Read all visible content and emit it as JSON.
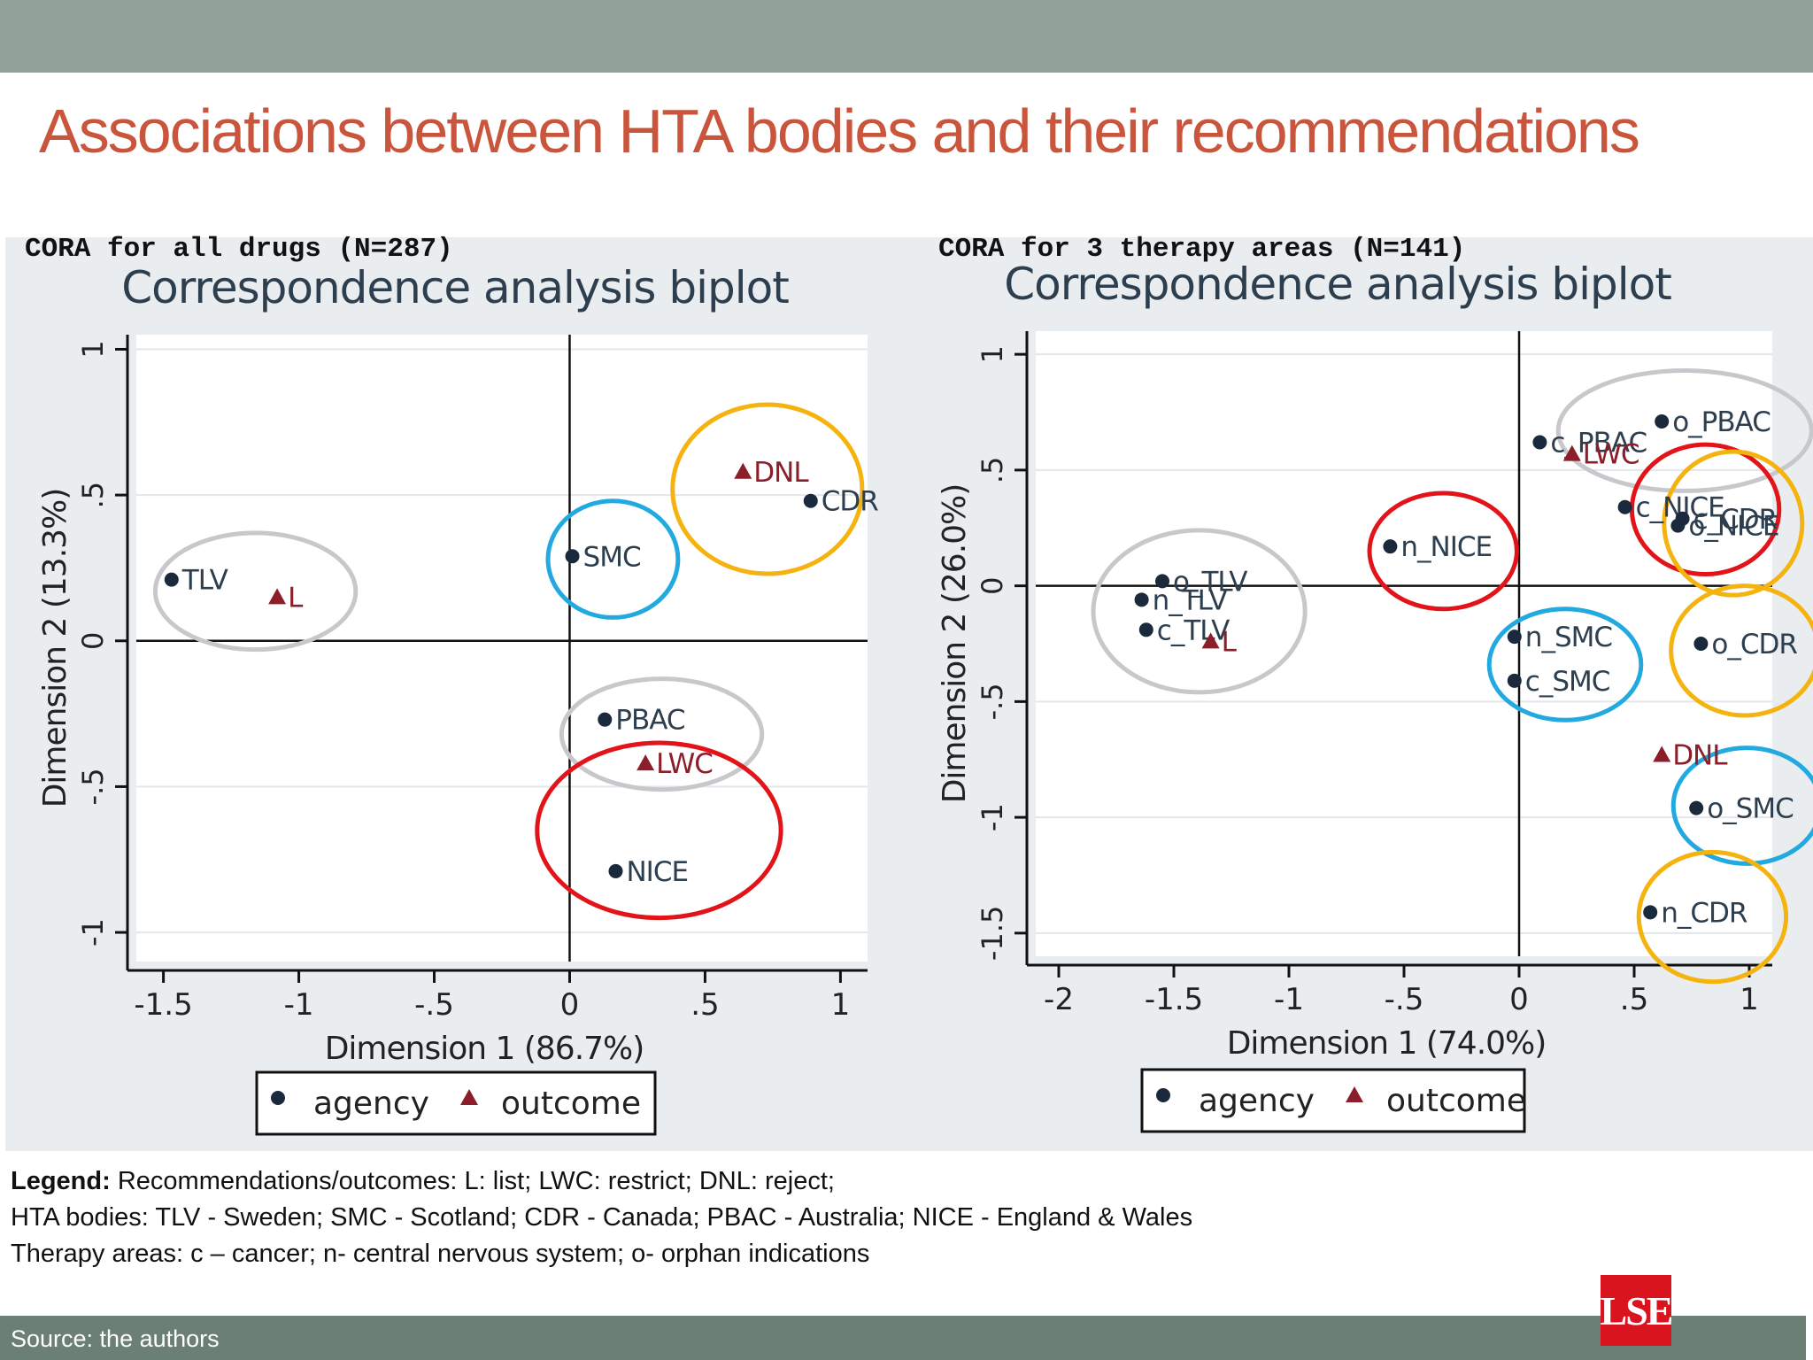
{
  "colors": {
    "top_bar": "#8fa198",
    "title": "#c9553c",
    "figure_bg": "#e9edf0",
    "plot_bg": "#ffffff",
    "footer_bar": "#6b7f74",
    "logo_bg": "#d9141f",
    "agency_marker": "#1a2a3c",
    "outcome_marker": "#8c1e2a",
    "circle_gray": "#c8c8cc",
    "circle_blue": "#22a9e0",
    "circle_orange": "#f5b30f",
    "circle_red": "#e2141a"
  },
  "slide": {
    "title": "Associations between HTA bodies and their recommendations"
  },
  "panels": [
    {
      "label": "CORA for all drugs (N=287)"
    },
    {
      "label": "CORA for 3 therapy areas (N=141)"
    }
  ],
  "legend": {
    "heading": "Legend:",
    "line1": " Recommendations/outcomes: L: list; LWC: restrict; DNL: reject;",
    "line2": "HTA bodies: TLV - Sweden; SMC - Scotland; CDR - Canada; PBAC - Australia; NICE - England & Wales",
    "line3": "Therapy areas: c – cancer; n- central nervous system; o- orphan indications"
  },
  "footer": {
    "source": "Source: the authors",
    "logo_text": "LSE"
  },
  "chart_data": [
    {
      "type": "scatter",
      "title": "Correspondence analysis biplot",
      "xlabel": "Dimension 1 (86.7%)",
      "ylabel": "Dimension 2 (13.3%)",
      "xlim": [
        -1.6,
        1.1
      ],
      "ylim": [
        -1.1,
        1.05
      ],
      "xticks": [
        -1.5,
        -1,
        -0.5,
        0,
        0.5,
        1
      ],
      "xtick_labels": [
        "-1.5",
        "-1",
        "-.5",
        "0",
        ".5",
        "1"
      ],
      "yticks": [
        -1,
        -0.5,
        0,
        0.5,
        1
      ],
      "ytick_labels": [
        "-1",
        "-.5",
        "0",
        ".5",
        "1"
      ],
      "grid": true,
      "legend": {
        "position": "bottom",
        "entries": [
          "agency",
          "outcome"
        ]
      },
      "series": [
        {
          "name": "agency",
          "marker": "circle",
          "points": [
            {
              "label": "TLV",
              "x": -1.47,
              "y": 0.21
            },
            {
              "label": "SMC",
              "x": 0.01,
              "y": 0.29
            },
            {
              "label": "CDR",
              "x": 0.89,
              "y": 0.48
            },
            {
              "label": "PBAC",
              "x": 0.13,
              "y": -0.27
            },
            {
              "label": "NICE",
              "x": 0.17,
              "y": -0.79
            }
          ]
        },
        {
          "name": "outcome",
          "marker": "triangle",
          "points": [
            {
              "label": "L",
              "x": -1.08,
              "y": 0.15
            },
            {
              "label": "DNL",
              "x": 0.64,
              "y": 0.58
            },
            {
              "label": "LWC",
              "x": 0.28,
              "y": -0.42
            }
          ]
        }
      ],
      "highlight_circles": [
        {
          "color": "gray",
          "cx": -1.16,
          "cy": 0.17,
          "rx": 0.37,
          "ry": 0.2
        },
        {
          "color": "blue",
          "cx": 0.16,
          "cy": 0.28,
          "rx": 0.24,
          "ry": 0.2
        },
        {
          "color": "orange",
          "cx": 0.73,
          "cy": 0.52,
          "rx": 0.35,
          "ry": 0.29
        },
        {
          "color": "gray",
          "cx": 0.34,
          "cy": -0.32,
          "rx": 0.37,
          "ry": 0.19
        },
        {
          "color": "red",
          "cx": 0.33,
          "cy": -0.65,
          "rx": 0.45,
          "ry": 0.3
        }
      ]
    },
    {
      "type": "scatter",
      "title": "Correspondence analysis biplot",
      "xlabel": "Dimension 1 (74.0%)",
      "ylabel": "Dimension 2 (26.0%)",
      "xlim": [
        -2.1,
        1.1
      ],
      "ylim": [
        -1.6,
        1.1
      ],
      "xticks": [
        -2,
        -1.5,
        -1,
        -0.5,
        0,
        0.5,
        1
      ],
      "xtick_labels": [
        "-2",
        "-1.5",
        "-1",
        "-.5",
        "0",
        ".5",
        "1"
      ],
      "yticks": [
        -1.5,
        -1,
        -0.5,
        0,
        0.5,
        1
      ],
      "ytick_labels": [
        "-1.5",
        "-1",
        "-.5",
        "0",
        ".5",
        "1"
      ],
      "grid": true,
      "legend": {
        "position": "bottom",
        "entries": [
          "agency",
          "outcome"
        ]
      },
      "series": [
        {
          "name": "agency",
          "marker": "circle",
          "points": [
            {
              "label": "o_PBAC",
              "x": 0.62,
              "y": 0.71
            },
            {
              "label": "c_PBAC",
              "x": 0.09,
              "y": 0.62
            },
            {
              "label": "c_NICE",
              "x": 0.46,
              "y": 0.34
            },
            {
              "label": "o_NICE",
              "x": 0.69,
              "y": 0.26
            },
            {
              "label": "n_NICE",
              "x": -0.56,
              "y": 0.17
            },
            {
              "label": "o_TLV",
              "x": -1.55,
              "y": 0.02
            },
            {
              "label": "n_TLV",
              "x": -1.64,
              "y": -0.06
            },
            {
              "label": "c_TLV",
              "x": -1.62,
              "y": -0.19
            },
            {
              "label": "n_SMC",
              "x": -0.02,
              "y": -0.22
            },
            {
              "label": "c_SMC",
              "x": -0.02,
              "y": -0.41
            },
            {
              "label": "o_CDR",
              "x": 0.79,
              "y": -0.25
            },
            {
              "label": "o_SMC",
              "x": 0.77,
              "y": -0.96
            },
            {
              "label": "n_CDR",
              "x": 0.57,
              "y": -1.41
            },
            {
              "label": "c_CDR",
              "x": 0.71,
              "y": 0.29
            }
          ]
        },
        {
          "name": "outcome",
          "marker": "triangle",
          "points": [
            {
              "label": "LWC",
              "x": 0.23,
              "y": 0.57
            },
            {
              "label": "L",
              "x": -1.34,
              "y": -0.24
            },
            {
              "label": "DNL",
              "x": 0.62,
              "y": -0.73
            }
          ]
        }
      ],
      "highlight_circles": [
        {
          "color": "gray",
          "cx": 0.72,
          "cy": 0.67,
          "rx": 0.55,
          "ry": 0.26
        },
        {
          "color": "red",
          "cx": -0.33,
          "cy": 0.15,
          "rx": 0.32,
          "ry": 0.25
        },
        {
          "color": "red",
          "cx": 0.81,
          "cy": 0.33,
          "rx": 0.32,
          "ry": 0.28
        },
        {
          "color": "orange",
          "cx": 0.93,
          "cy": 0.27,
          "rx": 0.3,
          "ry": 0.31
        },
        {
          "color": "gray",
          "cx": -1.39,
          "cy": -0.11,
          "rx": 0.46,
          "ry": 0.35
        },
        {
          "color": "blue",
          "cx": 0.2,
          "cy": -0.34,
          "rx": 0.33,
          "ry": 0.24
        },
        {
          "color": "orange",
          "cx": 0.98,
          "cy": -0.28,
          "rx": 0.32,
          "ry": 0.28
        },
        {
          "color": "blue",
          "cx": 0.99,
          "cy": -0.95,
          "rx": 0.32,
          "ry": 0.25
        },
        {
          "color": "orange",
          "cx": 0.84,
          "cy": -1.43,
          "rx": 0.32,
          "ry": 0.28
        }
      ]
    }
  ]
}
